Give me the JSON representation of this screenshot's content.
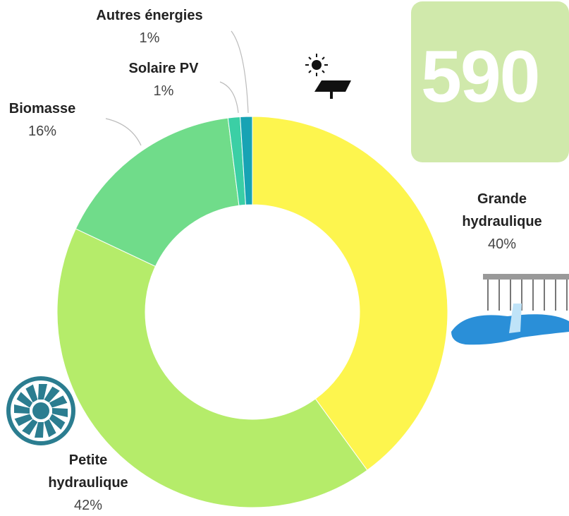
{
  "chart_data": {
    "type": "donut",
    "categories": [
      "Grande hydraulique",
      "Petite hydraulique",
      "Biomasse",
      "Solaire PV",
      "Autres énergies"
    ],
    "values": [
      40,
      42,
      16,
      1,
      1
    ],
    "value_labels": [
      "40%",
      "42%",
      "16%",
      "1%",
      "1%"
    ],
    "colors": [
      "#fdf54e",
      "#b5ec6a",
      "#70dc8a",
      "#3bcfa5",
      "#17a3b4"
    ]
  },
  "headline_value": 590
}
